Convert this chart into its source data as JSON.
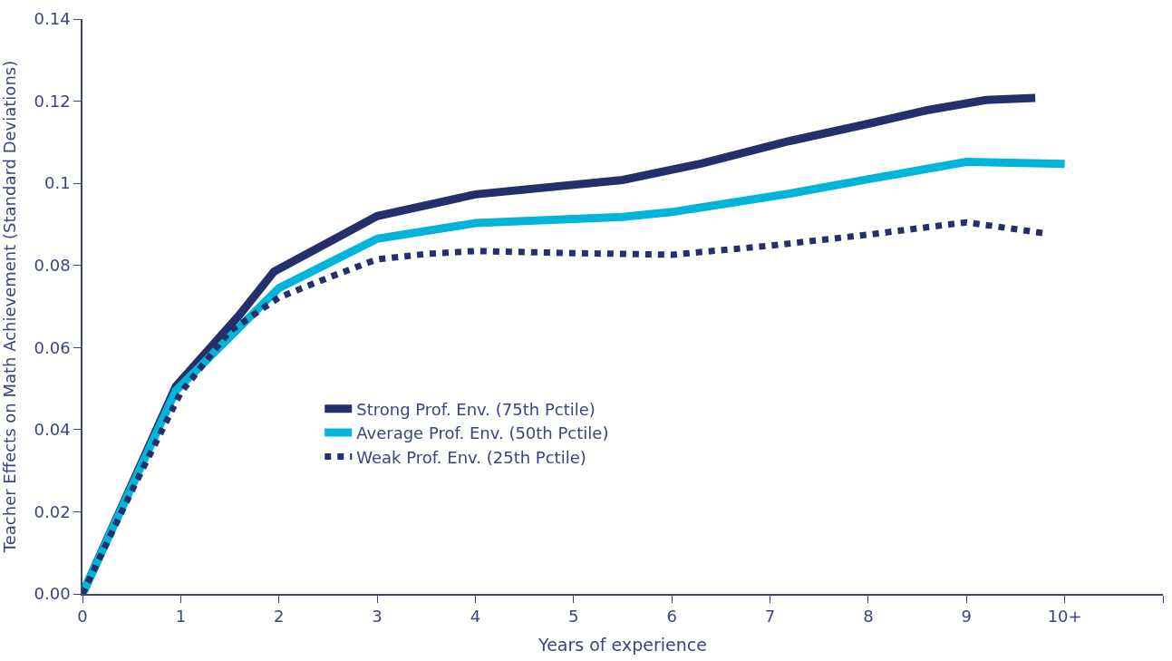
{
  "chart_data": {
    "type": "line",
    "xlabel": "Years of experience",
    "ylabel": "Teacher Effects on Math Achievement (Standard Deviations)",
    "xlim": [
      0,
      11
    ],
    "xticks": [
      0,
      1,
      2,
      3,
      4,
      5,
      6,
      7,
      8,
      9,
      {
        "value": 10,
        "label": "10+"
      },
      {
        "value": 11,
        "label": null
      }
    ],
    "ylim": [
      0,
      0.14
    ],
    "yticks": [
      {
        "value": 0,
        "label": "0.00"
      },
      0.02,
      0.04,
      0.06,
      0.08,
      0.1,
      0.12,
      0.14
    ],
    "legend": "center left",
    "series": [
      {
        "name": "Strong Prof. Env. (75th Pctile)",
        "color": "#25306a",
        "line_style": "solid",
        "x": [
          0,
          0.95,
          1.6,
          1.95,
          3,
          4,
          5.5,
          6.3,
          7.2,
          8,
          8.6,
          9.2,
          9.7
        ],
        "values": [
          0,
          0.0505,
          0.068,
          0.0785,
          0.092,
          0.0973,
          0.1008,
          0.1048,
          0.1103,
          0.1145,
          0.1178,
          0.1203,
          0.1208
        ]
      },
      {
        "name": "Average Prof. Env. (50th Pctile)",
        "color": "#00b5d8",
        "line_style": "solid",
        "x": [
          0,
          0.95,
          2,
          3,
          4,
          5.5,
          6,
          7.2,
          8,
          9,
          10
        ],
        "values": [
          0,
          0.0495,
          0.0745,
          0.0865,
          0.0903,
          0.0918,
          0.093,
          0.0975,
          0.101,
          0.1052,
          0.1047
        ]
      },
      {
        "name": "Weak Prof. Env. (25th Pctile)",
        "color": "#25306a",
        "line_style": "dotted",
        "x": [
          0,
          0.5,
          1,
          1.5,
          2,
          2.5,
          3,
          3.5,
          4,
          5,
          6,
          7,
          8,
          9,
          9.8
        ],
        "values": [
          0,
          0.025,
          0.049,
          0.064,
          0.0722,
          0.077,
          0.0815,
          0.0828,
          0.0835,
          0.083,
          0.0826,
          0.0848,
          0.0875,
          0.0905,
          0.0878
        ]
      }
    ]
  }
}
